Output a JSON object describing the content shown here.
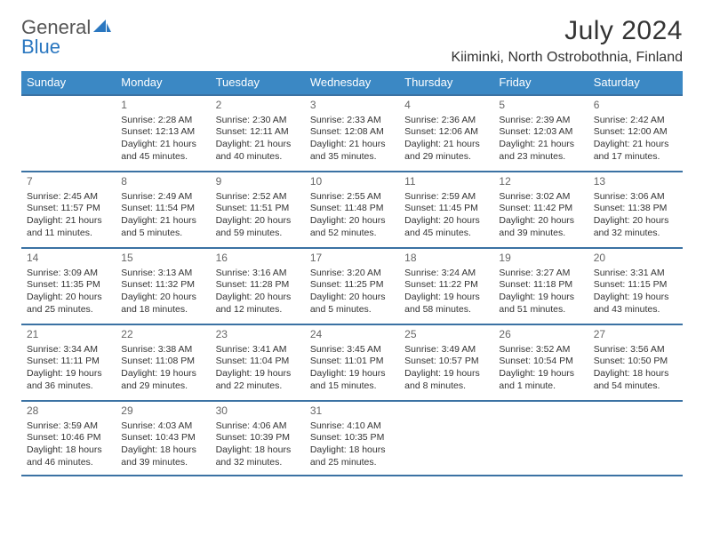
{
  "brand": {
    "word1": "General",
    "word2": "Blue"
  },
  "title": "July 2024",
  "location": "Kiiminki, North Ostrobothnia, Finland",
  "colors": {
    "header_bg": "#3b88c4",
    "header_text": "#ffffff",
    "rule": "#3b72a3",
    "text": "#333333",
    "muted": "#666666",
    "brand_blue": "#2a77c0"
  },
  "dow": [
    "Sunday",
    "Monday",
    "Tuesday",
    "Wednesday",
    "Thursday",
    "Friday",
    "Saturday"
  ],
  "weeks": [
    [
      null,
      {
        "n": "1",
        "sr": "Sunrise: 2:28 AM",
        "ss": "Sunset: 12:13 AM",
        "dl1": "Daylight: 21 hours",
        "dl2": "and 45 minutes."
      },
      {
        "n": "2",
        "sr": "Sunrise: 2:30 AM",
        "ss": "Sunset: 12:11 AM",
        "dl1": "Daylight: 21 hours",
        "dl2": "and 40 minutes."
      },
      {
        "n": "3",
        "sr": "Sunrise: 2:33 AM",
        "ss": "Sunset: 12:08 AM",
        "dl1": "Daylight: 21 hours",
        "dl2": "and 35 minutes."
      },
      {
        "n": "4",
        "sr": "Sunrise: 2:36 AM",
        "ss": "Sunset: 12:06 AM",
        "dl1": "Daylight: 21 hours",
        "dl2": "and 29 minutes."
      },
      {
        "n": "5",
        "sr": "Sunrise: 2:39 AM",
        "ss": "Sunset: 12:03 AM",
        "dl1": "Daylight: 21 hours",
        "dl2": "and 23 minutes."
      },
      {
        "n": "6",
        "sr": "Sunrise: 2:42 AM",
        "ss": "Sunset: 12:00 AM",
        "dl1": "Daylight: 21 hours",
        "dl2": "and 17 minutes."
      }
    ],
    [
      {
        "n": "7",
        "sr": "Sunrise: 2:45 AM",
        "ss": "Sunset: 11:57 PM",
        "dl1": "Daylight: 21 hours",
        "dl2": "and 11 minutes."
      },
      {
        "n": "8",
        "sr": "Sunrise: 2:49 AM",
        "ss": "Sunset: 11:54 PM",
        "dl1": "Daylight: 21 hours",
        "dl2": "and 5 minutes."
      },
      {
        "n": "9",
        "sr": "Sunrise: 2:52 AM",
        "ss": "Sunset: 11:51 PM",
        "dl1": "Daylight: 20 hours",
        "dl2": "and 59 minutes."
      },
      {
        "n": "10",
        "sr": "Sunrise: 2:55 AM",
        "ss": "Sunset: 11:48 PM",
        "dl1": "Daylight: 20 hours",
        "dl2": "and 52 minutes."
      },
      {
        "n": "11",
        "sr": "Sunrise: 2:59 AM",
        "ss": "Sunset: 11:45 PM",
        "dl1": "Daylight: 20 hours",
        "dl2": "and 45 minutes."
      },
      {
        "n": "12",
        "sr": "Sunrise: 3:02 AM",
        "ss": "Sunset: 11:42 PM",
        "dl1": "Daylight: 20 hours",
        "dl2": "and 39 minutes."
      },
      {
        "n": "13",
        "sr": "Sunrise: 3:06 AM",
        "ss": "Sunset: 11:38 PM",
        "dl1": "Daylight: 20 hours",
        "dl2": "and 32 minutes."
      }
    ],
    [
      {
        "n": "14",
        "sr": "Sunrise: 3:09 AM",
        "ss": "Sunset: 11:35 PM",
        "dl1": "Daylight: 20 hours",
        "dl2": "and 25 minutes."
      },
      {
        "n": "15",
        "sr": "Sunrise: 3:13 AM",
        "ss": "Sunset: 11:32 PM",
        "dl1": "Daylight: 20 hours",
        "dl2": "and 18 minutes."
      },
      {
        "n": "16",
        "sr": "Sunrise: 3:16 AM",
        "ss": "Sunset: 11:28 PM",
        "dl1": "Daylight: 20 hours",
        "dl2": "and 12 minutes."
      },
      {
        "n": "17",
        "sr": "Sunrise: 3:20 AM",
        "ss": "Sunset: 11:25 PM",
        "dl1": "Daylight: 20 hours",
        "dl2": "and 5 minutes."
      },
      {
        "n": "18",
        "sr": "Sunrise: 3:24 AM",
        "ss": "Sunset: 11:22 PM",
        "dl1": "Daylight: 19 hours",
        "dl2": "and 58 minutes."
      },
      {
        "n": "19",
        "sr": "Sunrise: 3:27 AM",
        "ss": "Sunset: 11:18 PM",
        "dl1": "Daylight: 19 hours",
        "dl2": "and 51 minutes."
      },
      {
        "n": "20",
        "sr": "Sunrise: 3:31 AM",
        "ss": "Sunset: 11:15 PM",
        "dl1": "Daylight: 19 hours",
        "dl2": "and 43 minutes."
      }
    ],
    [
      {
        "n": "21",
        "sr": "Sunrise: 3:34 AM",
        "ss": "Sunset: 11:11 PM",
        "dl1": "Daylight: 19 hours",
        "dl2": "and 36 minutes."
      },
      {
        "n": "22",
        "sr": "Sunrise: 3:38 AM",
        "ss": "Sunset: 11:08 PM",
        "dl1": "Daylight: 19 hours",
        "dl2": "and 29 minutes."
      },
      {
        "n": "23",
        "sr": "Sunrise: 3:41 AM",
        "ss": "Sunset: 11:04 PM",
        "dl1": "Daylight: 19 hours",
        "dl2": "and 22 minutes."
      },
      {
        "n": "24",
        "sr": "Sunrise: 3:45 AM",
        "ss": "Sunset: 11:01 PM",
        "dl1": "Daylight: 19 hours",
        "dl2": "and 15 minutes."
      },
      {
        "n": "25",
        "sr": "Sunrise: 3:49 AM",
        "ss": "Sunset: 10:57 PM",
        "dl1": "Daylight: 19 hours",
        "dl2": "and 8 minutes."
      },
      {
        "n": "26",
        "sr": "Sunrise: 3:52 AM",
        "ss": "Sunset: 10:54 PM",
        "dl1": "Daylight: 19 hours",
        "dl2": "and 1 minute."
      },
      {
        "n": "27",
        "sr": "Sunrise: 3:56 AM",
        "ss": "Sunset: 10:50 PM",
        "dl1": "Daylight: 18 hours",
        "dl2": "and 54 minutes."
      }
    ],
    [
      {
        "n": "28",
        "sr": "Sunrise: 3:59 AM",
        "ss": "Sunset: 10:46 PM",
        "dl1": "Daylight: 18 hours",
        "dl2": "and 46 minutes."
      },
      {
        "n": "29",
        "sr": "Sunrise: 4:03 AM",
        "ss": "Sunset: 10:43 PM",
        "dl1": "Daylight: 18 hours",
        "dl2": "and 39 minutes."
      },
      {
        "n": "30",
        "sr": "Sunrise: 4:06 AM",
        "ss": "Sunset: 10:39 PM",
        "dl1": "Daylight: 18 hours",
        "dl2": "and 32 minutes."
      },
      {
        "n": "31",
        "sr": "Sunrise: 4:10 AM",
        "ss": "Sunset: 10:35 PM",
        "dl1": "Daylight: 18 hours",
        "dl2": "and 25 minutes."
      },
      null,
      null,
      null
    ]
  ]
}
